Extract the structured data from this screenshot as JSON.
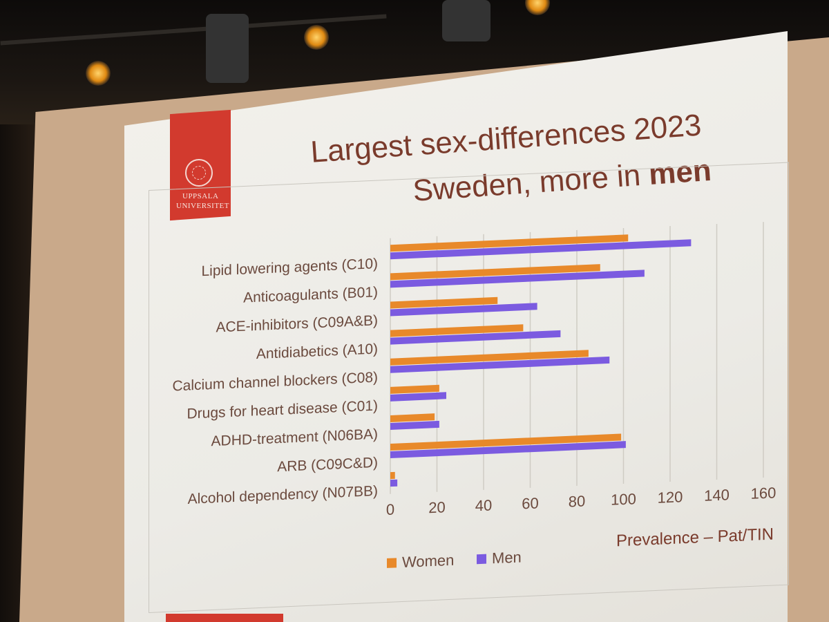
{
  "slide": {
    "title_line1": "Largest sex-differences 2023",
    "title_line2_prefix": "Sweden, more in ",
    "title_line2_bold": "men",
    "logo_line1": "UPPSALA",
    "logo_line2": "UNIVERSITET",
    "accent_color": "#d23a2e",
    "title_color": "#7a3b2c"
  },
  "chart_data": {
    "type": "bar",
    "orientation": "horizontal",
    "categories": [
      "Lipid lowering agents (C10)",
      "Anticoagulants (B01)",
      "ACE-inhibitors (C09A&B)",
      "Antidiabetics (A10)",
      "Calcium channel blockers (C08)",
      "Drugs for heart disease (C01)",
      "ADHD-treatment (N06BA)",
      "ARB (C09C&D)",
      "Alcohol dependency (N07BB)"
    ],
    "series": [
      {
        "name": "Women",
        "color": "#e8892a",
        "values": [
          102,
          90,
          46,
          57,
          85,
          21,
          19,
          99,
          2
        ]
      },
      {
        "name": "Men",
        "color": "#7b5be0",
        "values": [
          129,
          109,
          63,
          73,
          94,
          24,
          21,
          101,
          3
        ]
      }
    ],
    "xlim": [
      0,
      160
    ],
    "xticks": [
      "0",
      "20",
      "40",
      "60",
      "80",
      "100",
      "120",
      "140",
      "160"
    ],
    "grid": true,
    "legend_position": "bottom-left",
    "axis_caption": "Prevalence – Pat/TIN"
  }
}
